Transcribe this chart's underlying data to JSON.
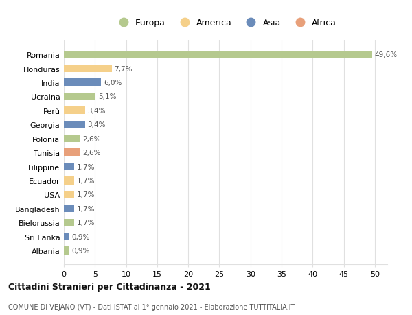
{
  "countries": [
    "Albania",
    "Sri Lanka",
    "Bielorussia",
    "Bangladesh",
    "USA",
    "Ecuador",
    "Filippine",
    "Tunisia",
    "Polonia",
    "Georgia",
    "Perù",
    "Ucraina",
    "India",
    "Honduras",
    "Romania"
  ],
  "values": [
    0.9,
    0.9,
    1.7,
    1.7,
    1.7,
    1.7,
    1.7,
    2.6,
    2.6,
    3.4,
    3.4,
    5.1,
    6.0,
    7.7,
    49.6
  ],
  "labels": [
    "0,9%",
    "0,9%",
    "1,7%",
    "1,7%",
    "1,7%",
    "1,7%",
    "1,7%",
    "2,6%",
    "2,6%",
    "3,4%",
    "3,4%",
    "5,1%",
    "6,0%",
    "7,7%",
    "49,6%"
  ],
  "colors": [
    "#b5c98e",
    "#6b8cba",
    "#b5c98e",
    "#6b8cba",
    "#f5d08a",
    "#f5d08a",
    "#6b8cba",
    "#e8a07a",
    "#b5c98e",
    "#6b8cba",
    "#f5d08a",
    "#b5c98e",
    "#6b8cba",
    "#f5d08a",
    "#b5c98e"
  ],
  "legend_labels": [
    "Europa",
    "America",
    "Asia",
    "Africa"
  ],
  "legend_colors": [
    "#b5c98e",
    "#f5d08a",
    "#6b8cba",
    "#e8a07a"
  ],
  "title": "Cittadini Stranieri per Cittadinanza - 2021",
  "subtitle": "COMUNE DI VEJANO (VT) - Dati ISTAT al 1° gennaio 2021 - Elaborazione TUTTITALIA.IT",
  "xlim": [
    0,
    52
  ],
  "xticks": [
    0,
    5,
    10,
    15,
    20,
    25,
    30,
    35,
    40,
    45,
    50
  ],
  "background_color": "#ffffff",
  "grid_color": "#e0e0e0"
}
